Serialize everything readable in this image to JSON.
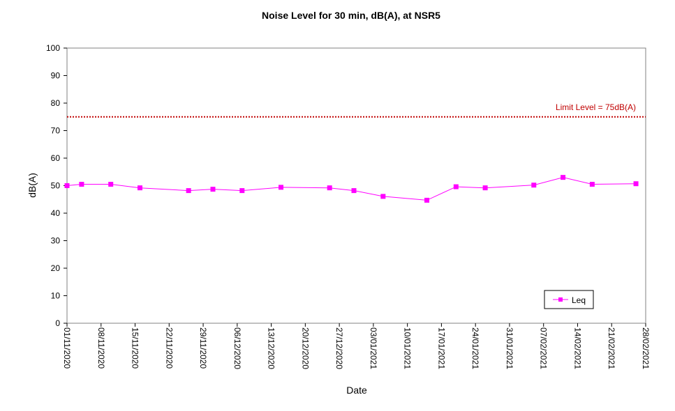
{
  "chart_data": {
    "type": "line",
    "title": "Noise Level for 30 min, dB(A), at NSR5",
    "xlabel": "Date",
    "ylabel": "dB(A)",
    "ylim": [
      0,
      100
    ],
    "yticks": [
      0,
      10,
      20,
      30,
      40,
      50,
      60,
      70,
      80,
      90,
      100
    ],
    "xlim": [
      "2020-11-01",
      "2021-02-28"
    ],
    "xtick_labels": [
      "01/11/2020",
      "08/11/2020",
      "15/11/2020",
      "22/11/2020",
      "29/11/2020",
      "06/12/2020",
      "13/12/2020",
      "20/12/2020",
      "27/12/2020",
      "03/01/2021",
      "10/01/2021",
      "17/01/2021",
      "24/01/2021",
      "31/01/2021",
      "07/02/2021",
      "14/02/2021",
      "21/02/2021",
      "28/02/2021"
    ],
    "grid": false,
    "legend_position": "bottom-right",
    "series": [
      {
        "name": "Leq",
        "color": "#FF00FF",
        "marker": "square",
        "points": [
          {
            "x": "2020-11-01",
            "y": 50.0
          },
          {
            "x": "2020-11-04",
            "y": 50.5
          },
          {
            "x": "2020-11-10",
            "y": 50.5
          },
          {
            "x": "2020-11-16",
            "y": 49.2
          },
          {
            "x": "2020-11-26",
            "y": 48.2
          },
          {
            "x": "2020-12-01",
            "y": 48.7
          },
          {
            "x": "2020-12-07",
            "y": 48.2
          },
          {
            "x": "2020-12-15",
            "y": 49.4
          },
          {
            "x": "2020-12-25",
            "y": 49.2
          },
          {
            "x": "2020-12-30",
            "y": 48.2
          },
          {
            "x": "2021-01-05",
            "y": 46.1
          },
          {
            "x": "2021-01-14",
            "y": 44.7
          },
          {
            "x": "2021-01-20",
            "y": 49.6
          },
          {
            "x": "2021-01-26",
            "y": 49.2
          },
          {
            "x": "2021-02-05",
            "y": 50.2
          },
          {
            "x": "2021-02-11",
            "y": 53.0
          },
          {
            "x": "2021-02-17",
            "y": 50.5
          },
          {
            "x": "2021-02-26",
            "y": 50.7
          }
        ]
      }
    ],
    "limit_line": {
      "value": 75,
      "label": "Limit Level = 75dB(A)",
      "color": "#C00000",
      "style": "dotted"
    }
  }
}
